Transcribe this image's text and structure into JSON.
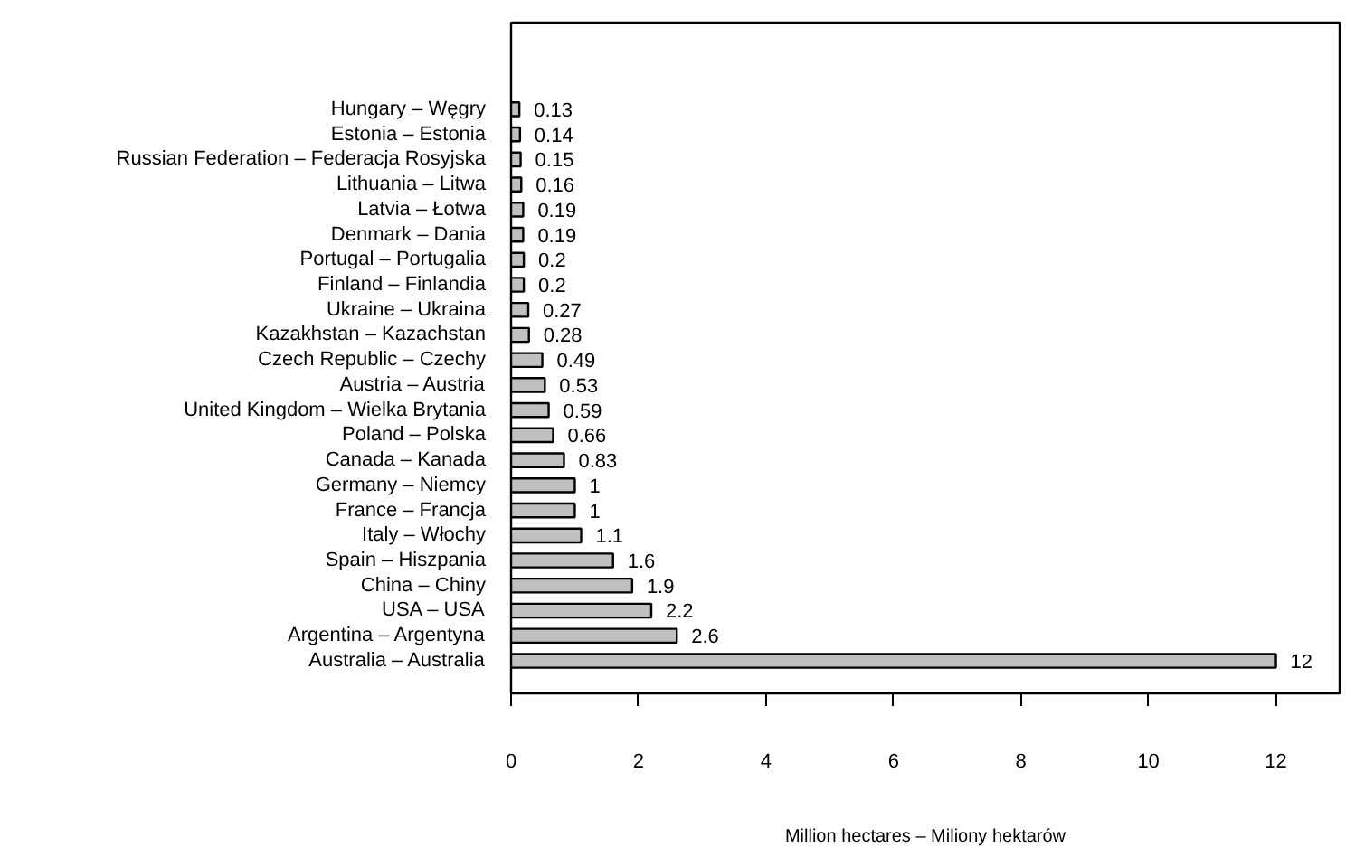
{
  "chart_data": {
    "type": "bar",
    "orientation": "horizontal",
    "xlabel": "Million hectares – Miliony hektarów",
    "categories": [
      "Hungary – Węgry",
      "Estonia – Estonia",
      "Russian Federation – Federacja Rosyjska",
      "Lithuania – Litwa",
      "Latvia – Łotwa",
      "Denmark – Dania",
      "Portugal – Portugalia",
      "Finland – Finlandia",
      "Ukraine – Ukraina",
      "Kazakhstan – Kazachstan",
      "Czech Republic – Czechy",
      "Austria – Austria",
      "United Kingdom – Wielka Brytania",
      "Poland – Polska",
      "Canada – Kanada",
      "Germany – Niemcy",
      "France – Francja",
      "Italy – Włochy",
      "Spain – Hiszpania",
      "China – Chiny",
      "USA – USA",
      "Argentina – Argentyna",
      "Australia – Australia"
    ],
    "values": [
      0.13,
      0.14,
      0.15,
      0.16,
      0.19,
      0.19,
      0.2,
      0.2,
      0.27,
      0.28,
      0.49,
      0.53,
      0.59,
      0.66,
      0.83,
      1,
      1,
      1.1,
      1.6,
      1.9,
      2.2,
      2.6,
      12
    ],
    "color": "#c0c0c0",
    "data_labels": true,
    "xlim": [
      0,
      13
    ],
    "xticks": [
      0,
      2,
      4,
      6,
      8,
      10,
      12
    ],
    "grid": false
  }
}
